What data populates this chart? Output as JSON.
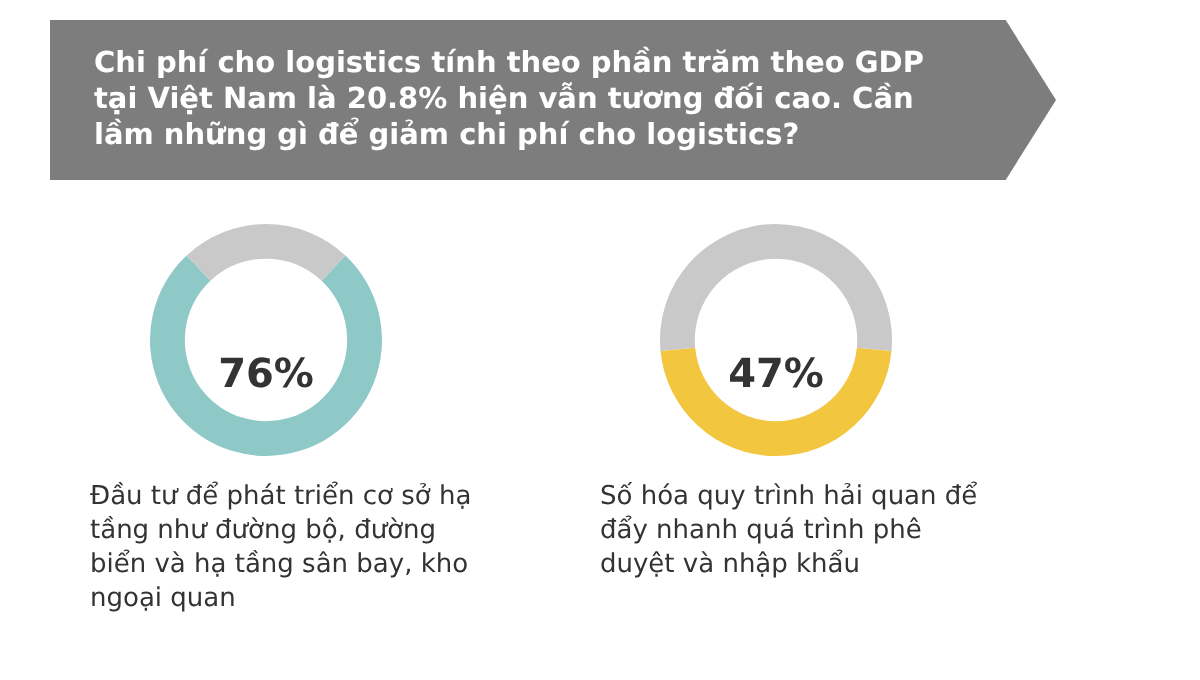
{
  "chart_data": [
    {
      "type": "other",
      "title": "Chi phí cho logistics tính theo phần trăm theo GDP tại Việt Nam là 20.8% hiện vẫn tương đối cao. Cần lầm những gì để giảm chi phí cho logistics?"
    },
    {
      "type": "donut",
      "categories": [
        null,
        null
      ],
      "values": [
        76,
        24
      ],
      "colors": [
        "#8ec9c8",
        "#c9c9c9"
      ],
      "value_labels": [
        "76%",
        null
      ],
      "annotations": [
        "Đầu tư để phát triển cơ sở hạ tầng như đường bộ, đường biển và hạ tầng sân bay, kho ngoại quan"
      ]
    },
    {
      "type": "donut",
      "categories": [
        null,
        null
      ],
      "values": [
        47,
        53
      ],
      "colors": [
        "#f3c63f",
        "#c9c9c9"
      ],
      "value_labels": [
        "47%",
        null
      ],
      "annotations": [
        "Số hóa quy trình hải quan để đẩy nhanh quá trình phê duyệt và nhập khẩu"
      ]
    }
  ]
}
